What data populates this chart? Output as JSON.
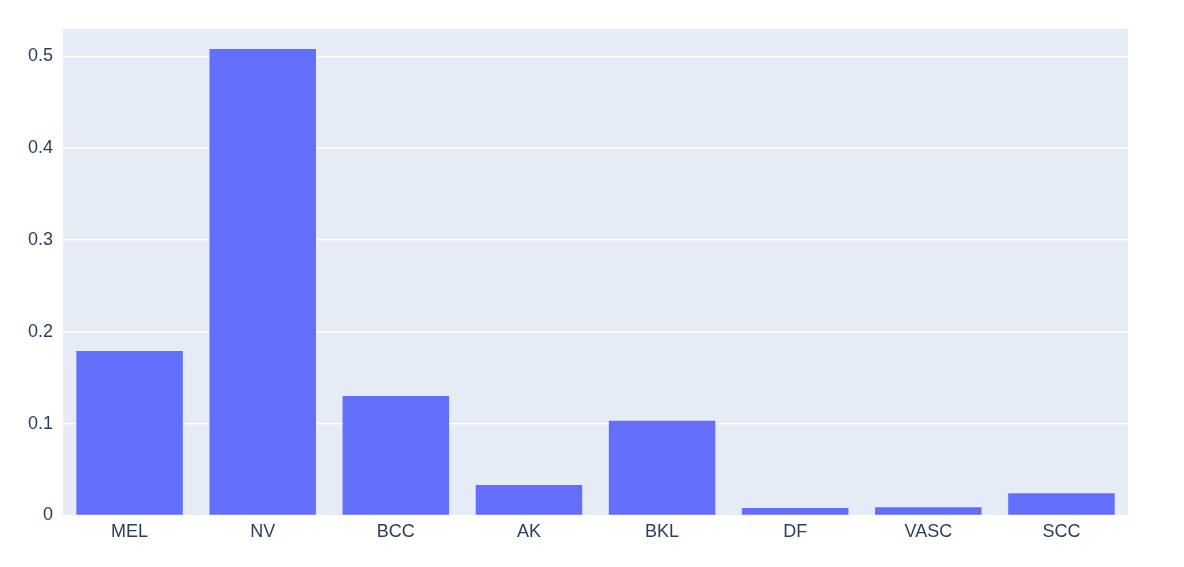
{
  "chart_data": {
    "type": "bar",
    "categories": [
      "MEL",
      "NV",
      "BCC",
      "AK",
      "BKL",
      "DF",
      "VASC",
      "SCC"
    ],
    "values": [
      0.179,
      0.508,
      0.13,
      0.033,
      0.103,
      0.008,
      0.009,
      0.024
    ],
    "color": "#636efa",
    "ylim": [
      0,
      0.53
    ],
    "yticks": [
      0,
      0.1,
      0.2,
      0.3,
      0.4,
      0.5
    ],
    "grid": "y",
    "legend": false
  }
}
